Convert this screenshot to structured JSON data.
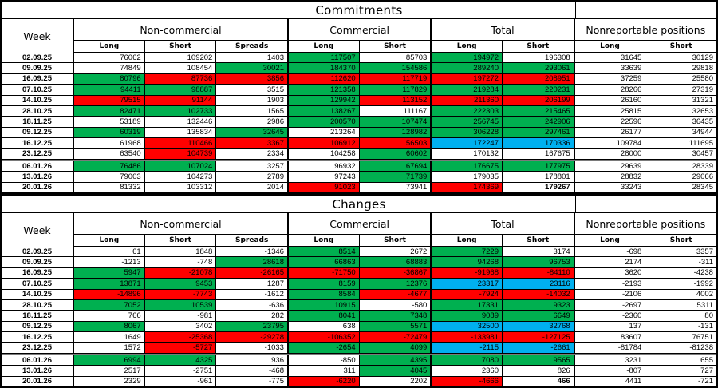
{
  "colors": {
    "green": "#00B050",
    "red": "#FF0000",
    "blue": "#00B0F0",
    "border": "#000000",
    "year_separator": "#7a7a7a"
  },
  "headers": {
    "week": "Week",
    "groups": [
      {
        "label": "Non-commercial",
        "cols": [
          "Long",
          "Short",
          "Spreads"
        ]
      },
      {
        "label": "Commercial",
        "cols": [
          "Long",
          "Short"
        ]
      },
      {
        "label": "Total",
        "cols": [
          "Long",
          "Short"
        ]
      },
      {
        "label": "Nonreportable positions",
        "cols": [
          "Long",
          "Short"
        ]
      }
    ]
  },
  "sections": [
    {
      "title": "Commitments",
      "rows": [
        {
          "date": "02.09.25",
          "cells": [
            [
              "76062",
              "w"
            ],
            [
              "109202",
              "w"
            ],
            [
              "1403",
              "w"
            ],
            [
              "117507",
              "g"
            ],
            [
              "85703",
              "w"
            ],
            [
              "194972",
              "g"
            ],
            [
              "196308",
              "w"
            ],
            [
              "31645",
              "w"
            ],
            [
              "30129",
              "w"
            ]
          ]
        },
        {
          "date": "09.09.25",
          "cells": [
            [
              "74849",
              "w"
            ],
            [
              "108454",
              "w"
            ],
            [
              "30021",
              "g"
            ],
            [
              "184370",
              "g"
            ],
            [
              "154586",
              "g"
            ],
            [
              "289240",
              "g"
            ],
            [
              "293061",
              "g"
            ],
            [
              "33639",
              "w"
            ],
            [
              "29818",
              "w"
            ]
          ]
        },
        {
          "date": "16.09.25",
          "cells": [
            [
              "80796",
              "g"
            ],
            [
              "87736",
              "r"
            ],
            [
              "3856",
              "r"
            ],
            [
              "112620",
              "r"
            ],
            [
              "117719",
              "r"
            ],
            [
              "197272",
              "r"
            ],
            [
              "208951",
              "r"
            ],
            [
              "37259",
              "w"
            ],
            [
              "25580",
              "w"
            ]
          ]
        },
        {
          "date": "07.10.25",
          "cells": [
            [
              "94411",
              "g"
            ],
            [
              "98887",
              "g"
            ],
            [
              "3515",
              "w"
            ],
            [
              "121358",
              "g"
            ],
            [
              "117829",
              "g"
            ],
            [
              "219284",
              "g"
            ],
            [
              "220231",
              "g"
            ],
            [
              "28266",
              "w"
            ],
            [
              "27319",
              "w"
            ]
          ]
        },
        {
          "date": "14.10.25",
          "cells": [
            [
              "79515",
              "r"
            ],
            [
              "91144",
              "r"
            ],
            [
              "1903",
              "w"
            ],
            [
              "129942",
              "g"
            ],
            [
              "113152",
              "r"
            ],
            [
              "211360",
              "r"
            ],
            [
              "206199",
              "r"
            ],
            [
              "26160",
              "w"
            ],
            [
              "31321",
              "w"
            ]
          ]
        },
        {
          "date": "28.10.25",
          "cells": [
            [
              "82471",
              "g"
            ],
            [
              "102733",
              "g"
            ],
            [
              "1565",
              "w"
            ],
            [
              "138267",
              "g"
            ],
            [
              "111167",
              "w"
            ],
            [
              "222303",
              "g"
            ],
            [
              "215465",
              "g"
            ],
            [
              "25815",
              "w"
            ],
            [
              "32653",
              "w"
            ]
          ]
        },
        {
          "date": "18.11.25",
          "cells": [
            [
              "53189",
              "w"
            ],
            [
              "132446",
              "w"
            ],
            [
              "2986",
              "w"
            ],
            [
              "200570",
              "g"
            ],
            [
              "107474",
              "g"
            ],
            [
              "256745",
              "g"
            ],
            [
              "242906",
              "g"
            ],
            [
              "22596",
              "w"
            ],
            [
              "36435",
              "w"
            ]
          ]
        },
        {
          "date": "09.12.25",
          "cells": [
            [
              "60319",
              "g"
            ],
            [
              "135834",
              "w"
            ],
            [
              "32645",
              "g"
            ],
            [
              "213264",
              "w"
            ],
            [
              "128982",
              "g"
            ],
            [
              "306228",
              "g"
            ],
            [
              "297461",
              "g"
            ],
            [
              "26177",
              "w"
            ],
            [
              "34944",
              "w"
            ]
          ]
        },
        {
          "date": "16.12.25",
          "cells": [
            [
              "61968",
              "w"
            ],
            [
              "110466",
              "r"
            ],
            [
              "3367",
              "r"
            ],
            [
              "106912",
              "r"
            ],
            [
              "56503",
              "r"
            ],
            [
              "172247",
              "b"
            ],
            [
              "170336",
              "b"
            ],
            [
              "109784",
              "w"
            ],
            [
              "111695",
              "w"
            ]
          ]
        },
        {
          "date": "23.12.25",
          "cells": [
            [
              "63540",
              "w"
            ],
            [
              "104739",
              "r"
            ],
            [
              "2334",
              "w"
            ],
            [
              "104258",
              "w"
            ],
            [
              "60602",
              "g"
            ],
            [
              "170132",
              "w"
            ],
            [
              "167675",
              "w"
            ],
            [
              "28000",
              "w"
            ],
            [
              "30457",
              "w"
            ]
          ]
        },
        {
          "date": "06.01.26",
          "cells": [
            [
              "76486",
              "g"
            ],
            [
              "107024",
              "g"
            ],
            [
              "3257",
              "w"
            ],
            [
              "96932",
              "w"
            ],
            [
              "67694",
              "g"
            ],
            [
              "176675",
              "g"
            ],
            [
              "177975",
              "g"
            ],
            [
              "29639",
              "w"
            ],
            [
              "28339",
              "w"
            ]
          ]
        },
        {
          "date": "13.01.26",
          "cells": [
            [
              "79003",
              "w"
            ],
            [
              "104273",
              "w"
            ],
            [
              "2789",
              "w"
            ],
            [
              "97243",
              "w"
            ],
            [
              "71739",
              "g"
            ],
            [
              "179035",
              "w"
            ],
            [
              "178801",
              "w"
            ],
            [
              "28832",
              "w"
            ],
            [
              "29066",
              "w"
            ]
          ]
        },
        {
          "date": "20.01.26",
          "cells": [
            [
              "81332",
              "w"
            ],
            [
              "103312",
              "w"
            ],
            [
              "2014",
              "w"
            ],
            [
              "91023",
              "r"
            ],
            [
              "73941",
              "w"
            ],
            [
              "174369",
              "r"
            ],
            [
              "179267",
              "w",
              "b"
            ],
            [
              "33243",
              "w"
            ],
            [
              "28345",
              "w"
            ]
          ]
        }
      ]
    },
    {
      "title": "Changes",
      "rows": [
        {
          "date": "02.09.25",
          "cells": [
            [
              "61",
              "w"
            ],
            [
              "1848",
              "w"
            ],
            [
              "-1346",
              "w"
            ],
            [
              "8514",
              "g"
            ],
            [
              "2672",
              "w"
            ],
            [
              "7229",
              "g"
            ],
            [
              "3174",
              "w"
            ],
            [
              "-698",
              "w"
            ],
            [
              "3357",
              "w"
            ]
          ]
        },
        {
          "date": "09.09.25",
          "cells": [
            [
              "-1213",
              "w"
            ],
            [
              "-748",
              "w"
            ],
            [
              "28618",
              "g"
            ],
            [
              "66863",
              "g"
            ],
            [
              "68883",
              "g"
            ],
            [
              "94268",
              "g"
            ],
            [
              "96753",
              "g"
            ],
            [
              "2174",
              "w"
            ],
            [
              "-311",
              "w"
            ]
          ]
        },
        {
          "date": "16.09.25",
          "cells": [
            [
              "5947",
              "g"
            ],
            [
              "-21078",
              "r"
            ],
            [
              "-26165",
              "r"
            ],
            [
              "-71750",
              "r"
            ],
            [
              "-36867",
              "r"
            ],
            [
              "-91968",
              "r"
            ],
            [
              "-84110",
              "r"
            ],
            [
              "3620",
              "w"
            ],
            [
              "-4238",
              "w"
            ]
          ]
        },
        {
          "date": "07.10.25",
          "cells": [
            [
              "13871",
              "g"
            ],
            [
              "9453",
              "g"
            ],
            [
              "1287",
              "w"
            ],
            [
              "8159",
              "g"
            ],
            [
              "12376",
              "g"
            ],
            [
              "23317",
              "b"
            ],
            [
              "23116",
              "b"
            ],
            [
              "-2193",
              "w"
            ],
            [
              "-1992",
              "w"
            ]
          ]
        },
        {
          "date": "14.10.25",
          "cells": [
            [
              "-14896",
              "r"
            ],
            [
              "-7743",
              "r"
            ],
            [
              "-1612",
              "w"
            ],
            [
              "8584",
              "g"
            ],
            [
              "-4677",
              "r"
            ],
            [
              "-7924",
              "r"
            ],
            [
              "-14032",
              "r"
            ],
            [
              "-2106",
              "w"
            ],
            [
              "4002",
              "w"
            ]
          ]
        },
        {
          "date": "28.10.25",
          "cells": [
            [
              "7052",
              "g"
            ],
            [
              "10539",
              "g"
            ],
            [
              "-636",
              "w"
            ],
            [
              "10915",
              "g"
            ],
            [
              "-580",
              "w"
            ],
            [
              "17331",
              "g"
            ],
            [
              "9323",
              "g"
            ],
            [
              "-2697",
              "w"
            ],
            [
              "5311",
              "w"
            ]
          ]
        },
        {
          "date": "18.11.25",
          "cells": [
            [
              "766",
              "w"
            ],
            [
              "-981",
              "w"
            ],
            [
              "282",
              "w"
            ],
            [
              "8041",
              "g"
            ],
            [
              "7348",
              "g"
            ],
            [
              "9089",
              "g"
            ],
            [
              "6649",
              "g"
            ],
            [
              "-2360",
              "w"
            ],
            [
              "80",
              "w"
            ]
          ]
        },
        {
          "date": "09.12.25",
          "cells": [
            [
              "8067",
              "g"
            ],
            [
              "3402",
              "w"
            ],
            [
              "23795",
              "g"
            ],
            [
              "638",
              "w"
            ],
            [
              "5571",
              "g"
            ],
            [
              "32500",
              "b"
            ],
            [
              "32768",
              "b"
            ],
            [
              "137",
              "w"
            ],
            [
              "-131",
              "w"
            ]
          ]
        },
        {
          "date": "16.12.25",
          "cells": [
            [
              "1649",
              "w"
            ],
            [
              "-25368",
              "r"
            ],
            [
              "-29278",
              "r"
            ],
            [
              "-106352",
              "r"
            ],
            [
              "-72479",
              "r"
            ],
            [
              "-133981",
              "r"
            ],
            [
              "-127125",
              "r"
            ],
            [
              "83607",
              "w"
            ],
            [
              "76751",
              "w"
            ]
          ]
        },
        {
          "date": "23.12.25",
          "cells": [
            [
              "1572",
              "w"
            ],
            [
              "-5727",
              "r"
            ],
            [
              "-1033",
              "w"
            ],
            [
              "-2654",
              "g"
            ],
            [
              "4099",
              "g"
            ],
            [
              "-2115",
              "b"
            ],
            [
              "-2661",
              "b"
            ],
            [
              "-81784",
              "w"
            ],
            [
              "-81238",
              "w"
            ]
          ]
        },
        {
          "date": "06.01.26",
          "cells": [
            [
              "6994",
              "g"
            ],
            [
              "4325",
              "g"
            ],
            [
              "936",
              "w"
            ],
            [
              "-850",
              "w"
            ],
            [
              "4395",
              "g"
            ],
            [
              "7080",
              "g"
            ],
            [
              "9565",
              "g"
            ],
            [
              "3231",
              "w"
            ],
            [
              "655",
              "w"
            ]
          ]
        },
        {
          "date": "13.01.26",
          "cells": [
            [
              "2517",
              "w"
            ],
            [
              "-2751",
              "w"
            ],
            [
              "-468",
              "w"
            ],
            [
              "311",
              "w"
            ],
            [
              "4045",
              "g"
            ],
            [
              "2360",
              "w"
            ],
            [
              "826",
              "w"
            ],
            [
              "-807",
              "w"
            ],
            [
              "727",
              "w"
            ]
          ]
        },
        {
          "date": "20.01.26",
          "cells": [
            [
              "2329",
              "w"
            ],
            [
              "-961",
              "w"
            ],
            [
              "-775",
              "w"
            ],
            [
              "-6220",
              "r"
            ],
            [
              "2202",
              "w"
            ],
            [
              "-4666",
              "r"
            ],
            [
              "466",
              "w",
              "b"
            ],
            [
              "4411",
              "w"
            ],
            [
              "-721",
              "w"
            ]
          ]
        }
      ]
    }
  ]
}
